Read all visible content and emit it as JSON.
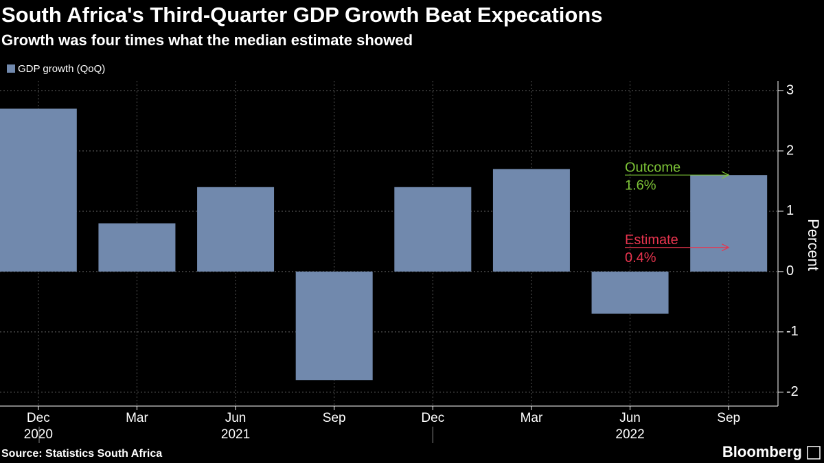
{
  "chart_data": {
    "type": "bar",
    "title": "South Africa's Third-Quarter GDP Growth Beat Expecations",
    "subtitle": "Growth was four times what the median estimate showed",
    "categories": [
      "Dec",
      "Mar",
      "Jun",
      "Sep",
      "Dec",
      "Mar",
      "Jun",
      "Sep"
    ],
    "year_labels": [
      "2020",
      null,
      "2021",
      null,
      null,
      null,
      "2022",
      null
    ],
    "series": [
      {
        "name": "GDP growth (QoQ)",
        "color": "#7189ad",
        "values": [
          2.7,
          0.8,
          1.4,
          -1.8,
          1.4,
          1.7,
          -0.7,
          1.6
        ]
      }
    ],
    "ylim": [
      -2.23,
      3.16
    ],
    "yticks": [
      -2,
      -1,
      0,
      1,
      2,
      3
    ],
    "grid": true,
    "y_label": "Percent",
    "annotations": [
      {
        "label": "Outcome",
        "value": 1.6,
        "value_label": "1.6%",
        "color": "#7dc437"
      },
      {
        "label": "Estimate",
        "value": 0.4,
        "value_label": "0.4%",
        "color": "#e8344e"
      }
    ],
    "source": "Source: Statistics South Africa",
    "brand": "Bloomberg"
  }
}
